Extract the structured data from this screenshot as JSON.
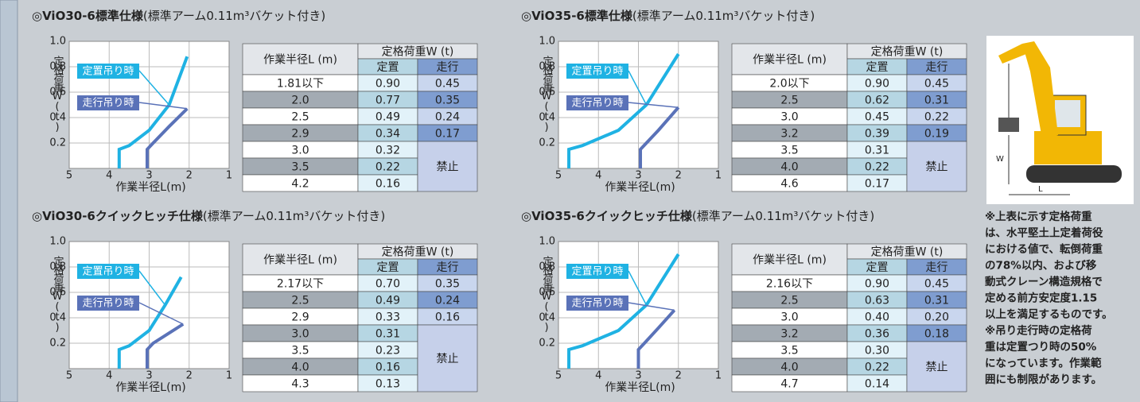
{
  "panels": [
    {
      "title": "◎ViO30-6標準仕様",
      "subtitle": "(標準アーム0.11m³バケット付き)",
      "chart": {
        "type": "line",
        "ylabel": "定格荷重W(t)",
        "xlabel": "作業半径L(m)",
        "xlim": [
          5,
          1
        ],
        "ylim": [
          0,
          1.0
        ],
        "xticks": [
          5,
          4,
          3,
          2,
          1
        ],
        "yticks": [
          {
            "value": 0.2,
            "label": "0.2"
          },
          {
            "value": 0.4,
            "label": "0.4"
          },
          {
            "value": 0.6,
            "label": "0.6"
          },
          {
            "value": 0.8,
            "label": "0.8"
          },
          {
            "value": 1.0,
            "label": "1.0"
          }
        ],
        "grid": true,
        "series": [
          {
            "name": "定置吊り時",
            "color": "#1fb2e3",
            "x": [
              3.75,
              3.75,
              3.5,
              3.0,
              2.5,
              2.05
            ],
            "values": [
              0,
              0.15,
              0.18,
              0.3,
              0.5,
              0.88
            ]
          },
          {
            "name": "走行吊り時",
            "color": "#5a72b8",
            "x": [
              3.05,
              3.05,
              2.9,
              2.5,
              2.05
            ],
            "values": [
              0,
              0.15,
              0.2,
              0.33,
              0.47
            ]
          }
        ]
      },
      "table": {
        "radius": "作業半径L (m)",
        "load": "定格荷重W (t)",
        "stationary": "定置",
        "travel": "走行",
        "forbidden": "禁止",
        "rows": [
          [
            "1.81以下",
            "0.90",
            "0.45"
          ],
          [
            "2.0",
            "0.77",
            "0.35"
          ],
          [
            "2.5",
            "0.49",
            "0.24"
          ],
          [
            "2.9",
            "0.34",
            "0.17"
          ],
          [
            "3.0",
            "0.32"
          ],
          [
            "3.5",
            "0.22"
          ],
          [
            "4.2",
            "0.16"
          ]
        ]
      }
    },
    {
      "title": "◎ViO35-6標準仕様",
      "subtitle": "(標準アーム0.11m³バケット付き)",
      "chart": {
        "type": "line",
        "ylabel": "定格荷重W(t)",
        "xlabel": "作業半径L(m)",
        "xlim": [
          5,
          1
        ],
        "ylim": [
          0,
          1.0
        ],
        "xticks": [
          5,
          4,
          3,
          2,
          1
        ],
        "yticks": [
          {
            "value": 0.2,
            "label": "0.2"
          },
          {
            "value": 0.4,
            "label": "0.4"
          },
          {
            "value": 0.6,
            "label": "0.6"
          },
          {
            "value": 0.8,
            "label": "0.8"
          },
          {
            "value": 1.0,
            "label": "1.0"
          }
        ],
        "grid": true,
        "series": [
          {
            "name": "定置吊り時",
            "color": "#1fb2e3",
            "x": [
              4.74,
              4.74,
              4.4,
              3.5,
              2.8,
              2.0
            ],
            "values": [
              0,
              0.15,
              0.18,
              0.3,
              0.5,
              0.9
            ]
          },
          {
            "name": "走行吊り時",
            "color": "#5a72b8",
            "x": [
              2.95,
              2.95,
              2.8,
              2.5,
              2.0
            ],
            "values": [
              0,
              0.15,
              0.2,
              0.3,
              0.48
            ]
          }
        ]
      },
      "table": {
        "radius": "作業半径L (m)",
        "load": "定格荷重W (t)",
        "stationary": "定置",
        "travel": "走行",
        "forbidden": "禁止",
        "rows": [
          [
            "2.0以下",
            "0.90",
            "0.45"
          ],
          [
            "2.5",
            "0.62",
            "0.31"
          ],
          [
            "3.0",
            "0.45",
            "0.22"
          ],
          [
            "3.2",
            "0.39",
            "0.19"
          ],
          [
            "3.5",
            "0.31"
          ],
          [
            "4.0",
            "0.22"
          ],
          [
            "4.6",
            "0.17"
          ]
        ]
      }
    },
    {
      "title": "◎ViO30-6クイックヒッチ仕様",
      "subtitle": "(標準アーム0.11m³バケット付き)",
      "chart": {
        "type": "line",
        "ylabel": "定格荷重W(t)",
        "xlabel": "作業半径L(m)",
        "xlim": [
          5,
          1
        ],
        "ylim": [
          0,
          1.0
        ],
        "xticks": [
          5,
          4,
          3,
          2,
          1
        ],
        "yticks": [
          {
            "value": 0.2,
            "label": "0.2"
          },
          {
            "value": 0.4,
            "label": "0.4"
          },
          {
            "value": 0.6,
            "label": "0.6"
          },
          {
            "value": 0.8,
            "label": "0.8"
          },
          {
            "value": 1.0,
            "label": "1.0"
          }
        ],
        "grid": true,
        "series": [
          {
            "name": "定置吊り時",
            "color": "#1fb2e3",
            "x": [
              3.75,
              3.75,
              3.5,
              3.0,
              2.6,
              2.2
            ],
            "values": [
              0,
              0.15,
              0.18,
              0.3,
              0.5,
              0.72
            ]
          },
          {
            "name": "走行吊り時",
            "color": "#5a72b8",
            "x": [
              3.05,
              3.05,
              2.9,
              2.5,
              2.15
            ],
            "values": [
              0,
              0.15,
              0.2,
              0.28,
              0.35
            ]
          }
        ]
      },
      "table": {
        "radius": "作業半径L (m)",
        "load": "定格荷重W (t)",
        "stationary": "定置",
        "travel": "走行",
        "forbidden": "禁止",
        "rows": [
          [
            "2.17以下",
            "0.70",
            "0.35"
          ],
          [
            "2.5",
            "0.49",
            "0.24"
          ],
          [
            "2.9",
            "0.33",
            "0.16"
          ],
          [
            "3.0",
            "0.31"
          ],
          [
            "3.5",
            "0.23"
          ],
          [
            "4.0",
            "0.16"
          ],
          [
            "4.3",
            "0.13"
          ]
        ]
      }
    },
    {
      "title": "◎ViO35-6クイックヒッチ仕様",
      "subtitle": "(標準アーム0.11m³バケット付き)",
      "chart": {
        "type": "line",
        "ylabel": "定格荷重W(t)",
        "xlabel": "作業半径L(m)",
        "xlim": [
          5,
          1
        ],
        "ylim": [
          0,
          1.0
        ],
        "xticks": [
          5,
          4,
          3,
          2,
          1
        ],
        "yticks": [
          {
            "value": 0.2,
            "label": "0.2"
          },
          {
            "value": 0.4,
            "label": "0.4"
          },
          {
            "value": 0.6,
            "label": "0.6"
          },
          {
            "value": 0.8,
            "label": "0.8"
          },
          {
            "value": 1.0,
            "label": "1.0"
          }
        ],
        "grid": true,
        "series": [
          {
            "name": "定置吊り時",
            "color": "#1fb2e3",
            "x": [
              4.74,
              4.74,
              4.4,
              3.5,
              2.8,
              2.0
            ],
            "values": [
              0,
              0.15,
              0.18,
              0.3,
              0.5,
              0.9
            ]
          },
          {
            "name": "走行吊り時",
            "color": "#5a72b8",
            "x": [
              3.0,
              3.0,
              2.85,
              2.5,
              2.1
            ],
            "values": [
              0,
              0.15,
              0.2,
              0.32,
              0.46
            ]
          }
        ]
      },
      "table": {
        "radius": "作業半径L (m)",
        "load": "定格荷重W (t)",
        "stationary": "定置",
        "travel": "走行",
        "forbidden": "禁止",
        "rows": [
          [
            "2.16以下",
            "0.90",
            "0.45"
          ],
          [
            "2.5",
            "0.63",
            "0.31"
          ],
          [
            "3.0",
            "0.40",
            "0.20"
          ],
          [
            "3.2",
            "0.36",
            "0.18"
          ],
          [
            "3.5",
            "0.30"
          ],
          [
            "4.0",
            "0.22"
          ],
          [
            "4.7",
            "0.14"
          ]
        ]
      }
    }
  ],
  "illustration": {
    "w": "W",
    "l": "L"
  },
  "notes": [
    "※上表に示す定格荷重",
    "は、水平堅土上定着荷役",
    "における値で、転倒荷重",
    "の78%以内、および移",
    "動式クレーン構造規格で",
    "定める前方安定度1.15",
    "以上を満足するものです。",
    "※吊り走行時の定格荷",
    "重は定置つり時の50%",
    "になっています。作業範",
    "囲にも制限があります。"
  ]
}
